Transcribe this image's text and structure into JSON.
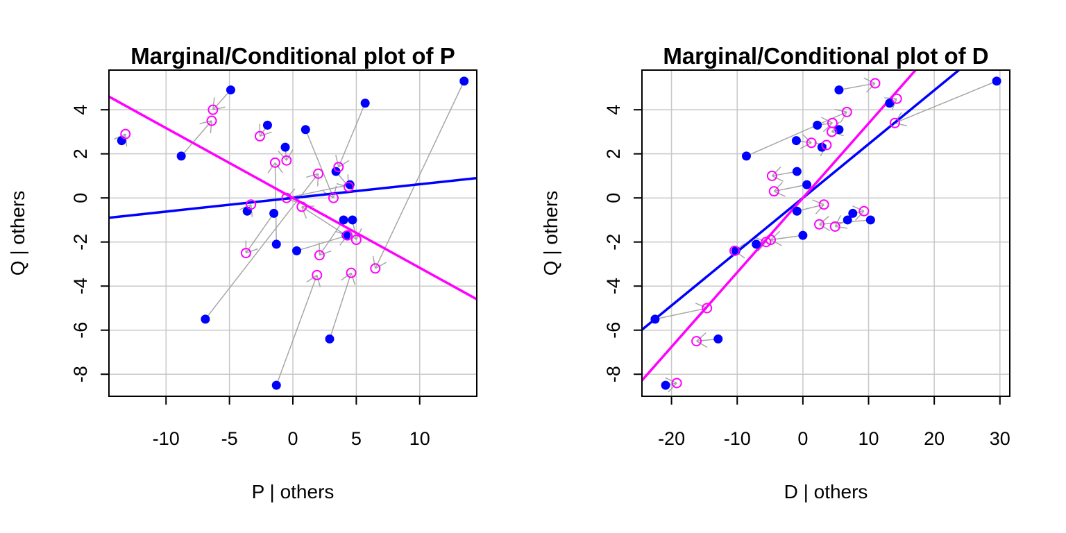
{
  "colors": {
    "marginal": "#0000ff",
    "conditional": "#ff00ff",
    "arrows": "#a6a6a6",
    "grid": "#c8c8c8"
  },
  "chart_data": [
    {
      "type": "scatter",
      "title": "Marginal/Conditional plot of P",
      "xlabel": "P | others",
      "ylabel": "Q  | others",
      "xlim": [
        -14.5,
        14.5
      ],
      "ylim": [
        -9,
        5.8
      ],
      "xticks": [
        -10,
        -5,
        0,
        5,
        10
      ],
      "yticks": [
        -8,
        -6,
        -4,
        -2,
        0,
        2,
        4
      ],
      "grid": true,
      "marginal_points": [
        {
          "x": -13.5,
          "y": 2.6
        },
        {
          "x": -8.8,
          "y": 1.9
        },
        {
          "x": -4.9,
          "y": 4.9
        },
        {
          "x": -2.0,
          "y": 3.3
        },
        {
          "x": -0.6,
          "y": 2.3
        },
        {
          "x": 1.0,
          "y": 3.1
        },
        {
          "x": 5.7,
          "y": 4.3
        },
        {
          "x": 13.5,
          "y": 5.3
        },
        {
          "x": 3.4,
          "y": 1.2
        },
        {
          "x": 4.5,
          "y": 0.6
        },
        {
          "x": -3.6,
          "y": -0.6
        },
        {
          "x": -1.5,
          "y": -0.7
        },
        {
          "x": -1.3,
          "y": -2.1
        },
        {
          "x": 0.3,
          "y": -2.4
        },
        {
          "x": 4.0,
          "y": -1.0
        },
        {
          "x": 4.7,
          "y": -1.0
        },
        {
          "x": 4.2,
          "y": -1.7
        },
        {
          "x": -6.9,
          "y": -5.5
        },
        {
          "x": 2.9,
          "y": -6.4
        },
        {
          "x": -1.3,
          "y": -8.5
        }
      ],
      "conditional_points": [
        {
          "x": -13.2,
          "y": 2.9
        },
        {
          "x": -6.3,
          "y": 4.0
        },
        {
          "x": -6.4,
          "y": 3.5
        },
        {
          "x": -2.6,
          "y": 2.8
        },
        {
          "x": -1.4,
          "y": 1.6
        },
        {
          "x": -0.5,
          "y": 1.7
        },
        {
          "x": 2.0,
          "y": 1.1
        },
        {
          "x": 3.6,
          "y": 1.4
        },
        {
          "x": 4.4,
          "y": 0.5
        },
        {
          "x": -0.5,
          "y": 0.0
        },
        {
          "x": 3.2,
          "y": 0.0
        },
        {
          "x": -3.3,
          "y": -0.3
        },
        {
          "x": 0.7,
          "y": -0.4
        },
        {
          "x": 5.0,
          "y": -1.9
        },
        {
          "x": 4.3,
          "y": -1.7
        },
        {
          "x": -3.7,
          "y": -2.5
        },
        {
          "x": 2.1,
          "y": -2.6
        },
        {
          "x": 1.9,
          "y": -3.5
        },
        {
          "x": 4.6,
          "y": -3.4
        },
        {
          "x": 6.5,
          "y": -3.2
        }
      ],
      "arrow_pairs": [
        [
          0,
          0
        ],
        [
          1,
          2
        ],
        [
          2,
          1
        ],
        [
          3,
          3
        ],
        [
          4,
          5
        ],
        [
          5,
          10
        ],
        [
          6,
          7
        ],
        [
          7,
          19
        ],
        [
          8,
          8
        ],
        [
          9,
          9
        ],
        [
          10,
          11
        ],
        [
          11,
          15
        ],
        [
          12,
          4
        ],
        [
          13,
          14
        ],
        [
          14,
          16
        ],
        [
          15,
          13
        ],
        [
          16,
          12
        ],
        [
          17,
          6
        ],
        [
          18,
          18
        ],
        [
          19,
          17
        ]
      ],
      "marginal_line": {
        "slope": 0.062,
        "intercept": 0.0
      },
      "conditional_line": {
        "slope": -0.317,
        "intercept": 0.0
      }
    },
    {
      "type": "scatter",
      "title": "Marginal/Conditional plot of D",
      "xlabel": "D | others",
      "ylabel": "Q  | others",
      "xlim": [
        -24.5,
        31.5
      ],
      "ylim": [
        -9,
        5.8
      ],
      "xticks": [
        -20,
        -10,
        0,
        10,
        20,
        30
      ],
      "yticks": [
        -8,
        -6,
        -4,
        -2,
        0,
        2,
        4
      ],
      "grid": true,
      "marginal_points": [
        {
          "x": 5.5,
          "y": 4.9
        },
        {
          "x": 13.2,
          "y": 4.3
        },
        {
          "x": 29.5,
          "y": 5.3
        },
        {
          "x": 2.2,
          "y": 3.3
        },
        {
          "x": 5.5,
          "y": 3.1
        },
        {
          "x": -1.0,
          "y": 2.6
        },
        {
          "x": 2.9,
          "y": 2.3
        },
        {
          "x": -8.6,
          "y": 1.9
        },
        {
          "x": -0.9,
          "y": 1.2
        },
        {
          "x": 0.6,
          "y": 0.6
        },
        {
          "x": -0.9,
          "y": -0.6
        },
        {
          "x": 7.6,
          "y": -0.7
        },
        {
          "x": 6.8,
          "y": -1.0
        },
        {
          "x": 10.3,
          "y": -1.0
        },
        {
          "x": 0.0,
          "y": -1.7
        },
        {
          "x": -7.1,
          "y": -2.1
        },
        {
          "x": -10.2,
          "y": -2.4
        },
        {
          "x": -22.5,
          "y": -5.5
        },
        {
          "x": -12.9,
          "y": -6.4
        },
        {
          "x": -20.9,
          "y": -8.5
        }
      ],
      "conditional_points": [
        {
          "x": 11.0,
          "y": 5.2
        },
        {
          "x": 14.3,
          "y": 4.5
        },
        {
          "x": 6.7,
          "y": 3.9
        },
        {
          "x": 4.5,
          "y": 3.4
        },
        {
          "x": 4.4,
          "y": 3.0
        },
        {
          "x": 14.0,
          "y": 3.4
        },
        {
          "x": 1.3,
          "y": 2.5
        },
        {
          "x": 3.6,
          "y": 2.4
        },
        {
          "x": -4.7,
          "y": 1.0
        },
        {
          "x": -4.4,
          "y": 0.3
        },
        {
          "x": 3.2,
          "y": -0.3
        },
        {
          "x": 9.3,
          "y": -0.6
        },
        {
          "x": 2.5,
          "y": -1.2
        },
        {
          "x": 4.9,
          "y": -1.3
        },
        {
          "x": -4.9,
          "y": -1.9
        },
        {
          "x": -5.6,
          "y": -2.0
        },
        {
          "x": -10.4,
          "y": -2.4
        },
        {
          "x": -14.6,
          "y": -5.0
        },
        {
          "x": -16.2,
          "y": -6.5
        },
        {
          "x": -19.2,
          "y": -8.4
        }
      ],
      "arrow_pairs": [
        [
          0,
          0
        ],
        [
          1,
          1
        ],
        [
          2,
          5
        ],
        [
          3,
          3
        ],
        [
          4,
          4
        ],
        [
          5,
          6
        ],
        [
          6,
          7
        ],
        [
          7,
          2
        ],
        [
          8,
          8
        ],
        [
          9,
          9
        ],
        [
          10,
          10
        ],
        [
          11,
          11
        ],
        [
          12,
          13
        ],
        [
          13,
          12
        ],
        [
          14,
          14
        ],
        [
          15,
          15
        ],
        [
          16,
          16
        ],
        [
          17,
          17
        ],
        [
          18,
          18
        ],
        [
          19,
          19
        ]
      ],
      "marginal_line": {
        "slope": 0.2442,
        "intercept": 0.0
      },
      "conditional_line": {
        "slope": 0.338,
        "intercept": 0.0
      }
    }
  ]
}
